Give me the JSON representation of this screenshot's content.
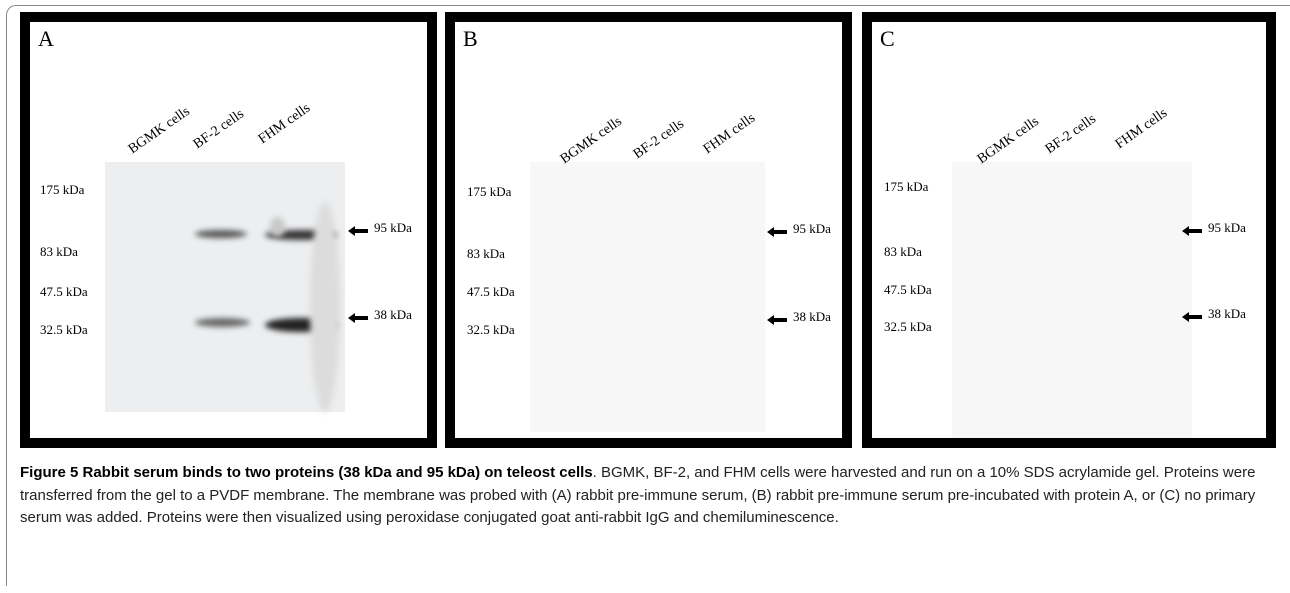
{
  "figure": {
    "panels": [
      {
        "letter": "A",
        "lanes": [
          "BGMK cells",
          "BF-2 cells",
          "FHM cells"
        ],
        "ladder": [
          "175 kDa",
          "83 kDa",
          "47.5 kDa",
          "32.5 kDa"
        ],
        "markers": [
          "95 kDa",
          "38 kDa"
        ]
      },
      {
        "letter": "B",
        "lanes": [
          "BGMK cells",
          "BF-2 cells",
          "FHM cells"
        ],
        "ladder": [
          "175 kDa",
          "83 kDa",
          "47.5 kDa",
          "32.5 kDa"
        ],
        "markers": [
          "95 kDa",
          "38 kDa"
        ]
      },
      {
        "letter": "C",
        "lanes": [
          "BGMK cells",
          "BF-2 cells",
          "FHM cells"
        ],
        "ladder": [
          "175 kDa",
          "83 kDa",
          "47.5 kDa",
          "32.5 kDa"
        ],
        "markers": [
          "95 kDa",
          "38 kDa"
        ]
      }
    ],
    "caption": {
      "title": "Figure 5 Rabbit serum binds to two proteins (38 kDa and 95 kDa) on teleost cells",
      "text": ". BGMK, BF-2, and FHM cells were harvested and run on a 10% SDS acrylamide gel. Proteins were transferred from the gel to a PVDF membrane. The membrane was probed with (A) rabbit pre-immune serum, (B) rabbit pre-immune serum pre-incubated with protein A, or (C) no primary serum was added. Proteins were then visualized using peroxidase conjugated goat anti-rabbit IgG and chemiluminescence."
    }
  }
}
